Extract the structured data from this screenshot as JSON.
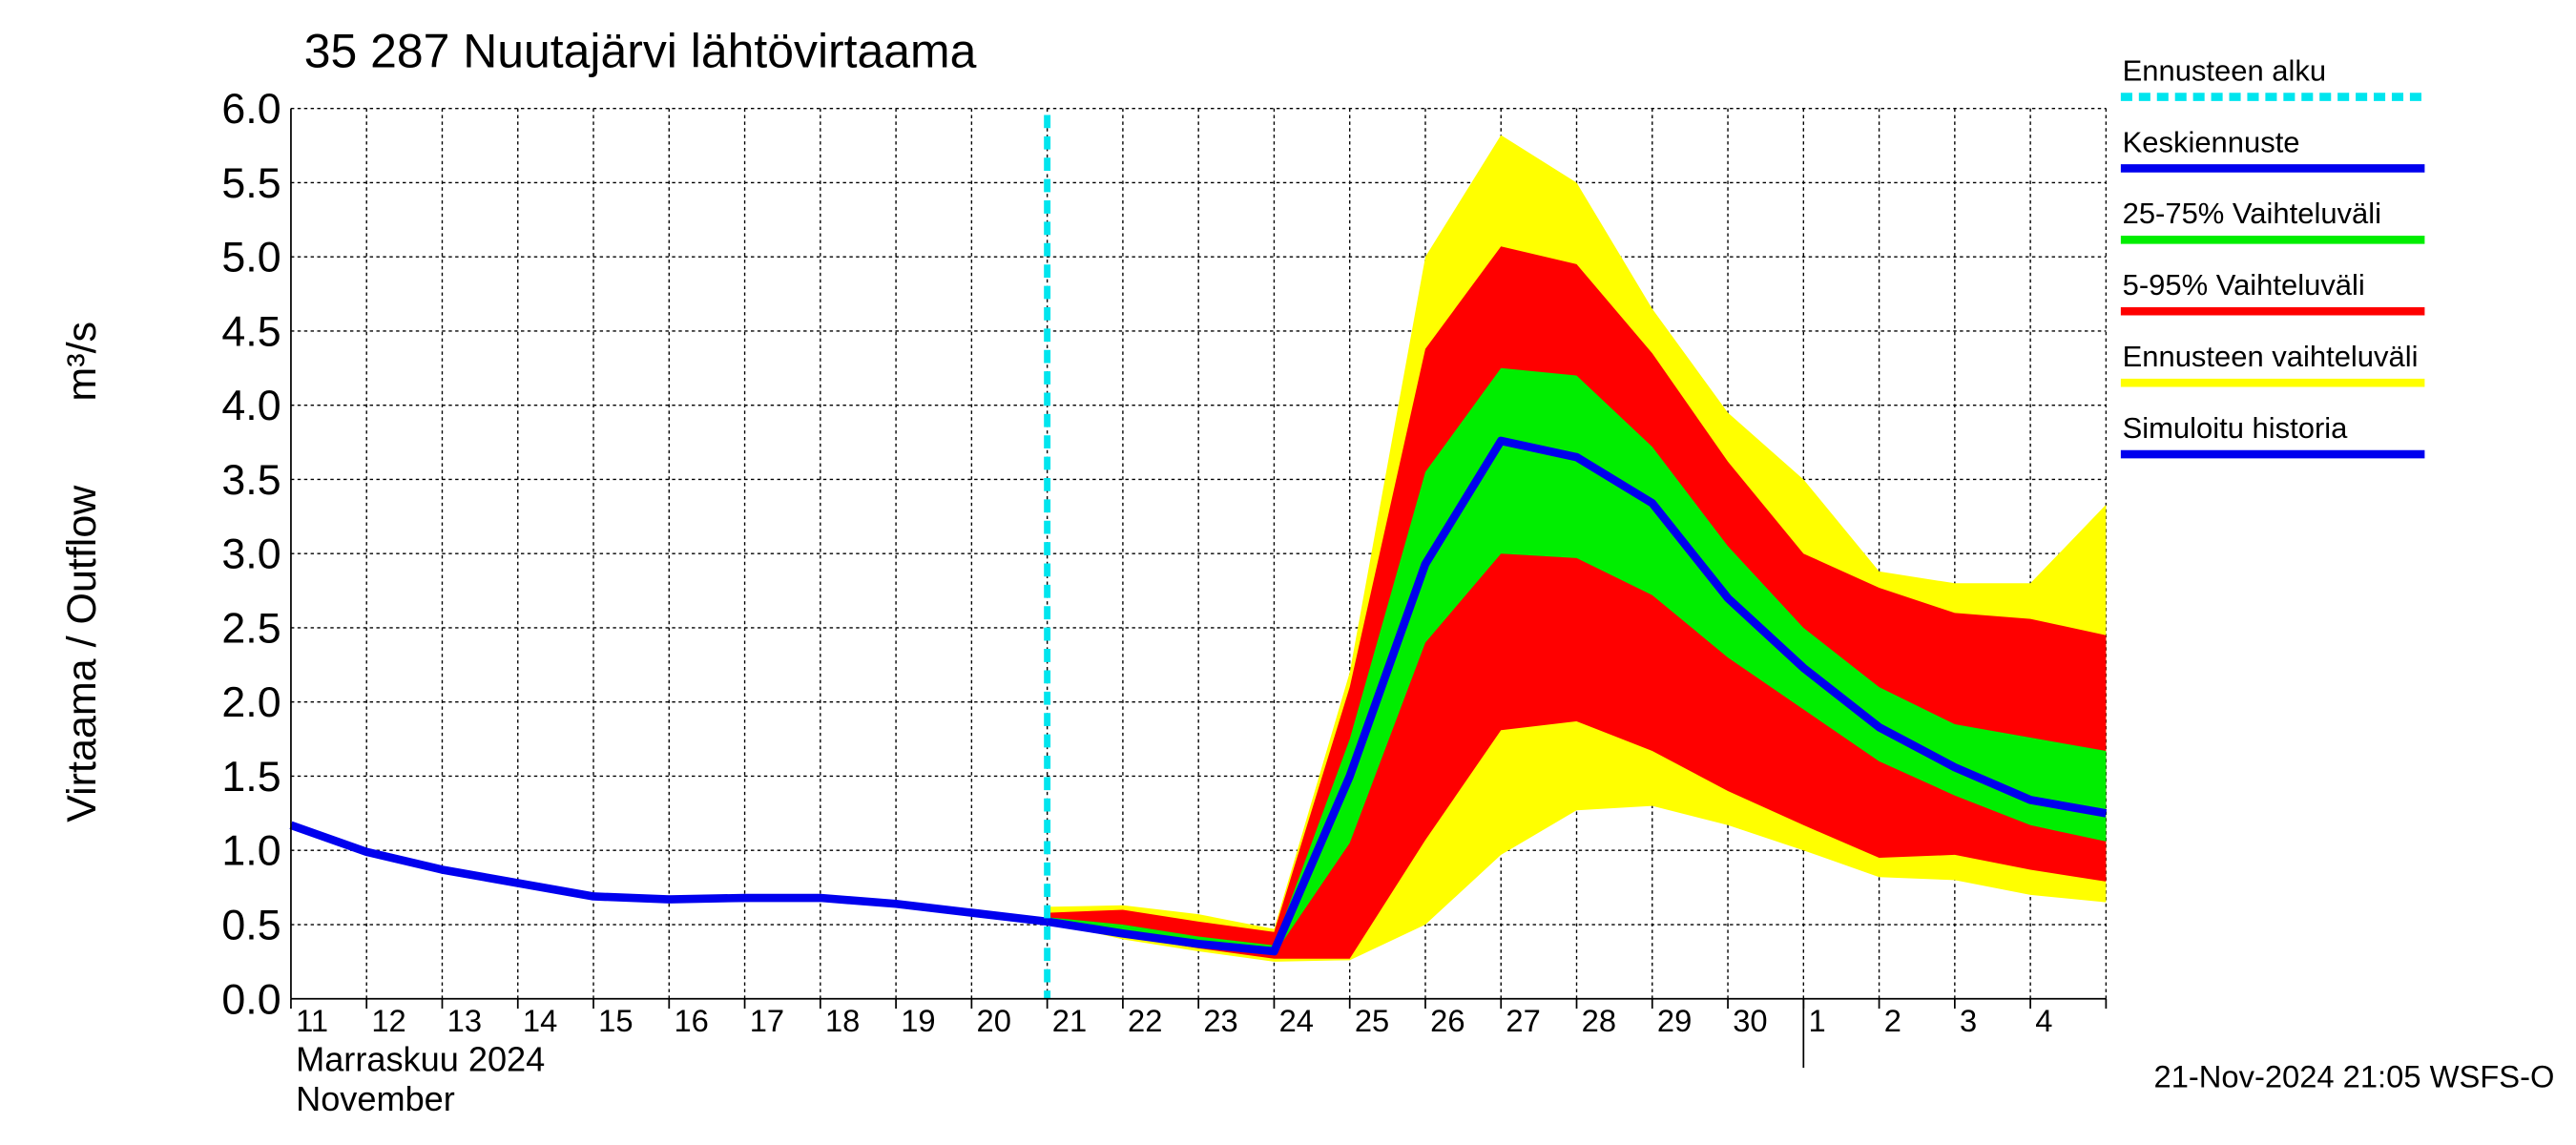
{
  "chart_data": {
    "type": "forecast-band",
    "title": "35 287 Nuutajärvi lähtövirtaama",
    "y_label": "Virtaama / Outflow",
    "y_unit": "m³/s",
    "x_label_month": "Marraskuu 2024",
    "x_label_month_en": "November",
    "footer": "21-Nov-2024 21:05 WSFS-O",
    "categories": [
      "11",
      "12",
      "13",
      "14",
      "15",
      "16",
      "17",
      "18",
      "19",
      "20",
      "21",
      "22",
      "23",
      "24",
      "25",
      "26",
      "27",
      "28",
      "29",
      "30",
      "1",
      "2",
      "3",
      "4",
      null
    ],
    "month_break": 20,
    "ylim": [
      0,
      6
    ],
    "yticks": [
      {
        "value": 0,
        "label": "0.0"
      },
      0.5,
      {
        "value": 1,
        "label": "1.0"
      },
      1.5,
      {
        "value": 2,
        "label": "2.0"
      },
      2.5,
      {
        "value": 3,
        "label": "3.0"
      },
      3.5,
      {
        "value": 4,
        "label": "4.0"
      },
      4.5,
      {
        "value": 5,
        "label": "5.0"
      },
      5.5,
      {
        "value": 6,
        "label": "6.0"
      }
    ],
    "grid": true,
    "forecast_start": {
      "name": "Ennusteen alku",
      "index": 10,
      "color": "#00e5ee"
    },
    "series": [
      {
        "name": "Ennusteen vaihteluväli",
        "kind": "band",
        "color": "#ffff00",
        "values": [
          null,
          null,
          null,
          null,
          null,
          null,
          null,
          null,
          null,
          null,
          0.62,
          0.63,
          0.57,
          0.47,
          2.2,
          5.0,
          5.82,
          5.5,
          4.65,
          3.95,
          3.5,
          2.88,
          2.8,
          2.8,
          3.33
        ],
        "lower": [
          null,
          null,
          null,
          null,
          null,
          null,
          null,
          null,
          null,
          null,
          0.52,
          0.4,
          0.32,
          0.25,
          0.26,
          0.5,
          0.97,
          1.27,
          1.3,
          1.17,
          1.0,
          0.82,
          0.8,
          0.7,
          0.65
        ]
      },
      {
        "name": "5-95% Vaihteluväli",
        "kind": "band",
        "color": "#ff0000",
        "values": [
          null,
          null,
          null,
          null,
          null,
          null,
          null,
          null,
          null,
          null,
          0.58,
          0.6,
          0.52,
          0.45,
          2.1,
          4.38,
          5.07,
          4.95,
          4.35,
          3.62,
          3.0,
          2.77,
          2.6,
          2.56,
          2.45
        ],
        "lower": [
          null,
          null,
          null,
          null,
          null,
          null,
          null,
          null,
          null,
          null,
          0.52,
          0.42,
          0.34,
          0.27,
          0.27,
          1.07,
          1.81,
          1.87,
          1.67,
          1.4,
          1.17,
          0.95,
          0.97,
          0.87,
          0.79
        ]
      },
      {
        "name": "25-75% Vaihteluväli",
        "kind": "band",
        "color": "#00ee00",
        "values": [
          null,
          null,
          null,
          null,
          null,
          null,
          null,
          null,
          null,
          null,
          0.55,
          0.5,
          0.42,
          0.36,
          1.75,
          3.55,
          4.25,
          4.2,
          3.72,
          3.05,
          2.5,
          2.1,
          1.85,
          1.76,
          1.67
        ],
        "lower": [
          null,
          null,
          null,
          null,
          null,
          null,
          null,
          null,
          null,
          null,
          0.52,
          0.43,
          0.36,
          0.3,
          1.05,
          2.4,
          3.0,
          2.97,
          2.72,
          2.3,
          1.95,
          1.6,
          1.37,
          1.17,
          1.06
        ]
      },
      {
        "name": "Keskiennuste",
        "kind": "line",
        "color": "#0000ee",
        "values": [
          null,
          null,
          null,
          null,
          null,
          null,
          null,
          null,
          null,
          null,
          0.52,
          0.44,
          0.37,
          0.32,
          1.5,
          2.93,
          3.76,
          3.65,
          3.34,
          2.7,
          2.23,
          1.83,
          1.56,
          1.34,
          1.25
        ]
      },
      {
        "name": "Simuloitu historia",
        "kind": "line",
        "color": "#0000ee",
        "values": [
          1.17,
          0.99,
          0.87,
          0.78,
          0.69,
          0.67,
          0.68,
          0.68,
          0.64,
          0.58,
          0.52,
          null,
          null,
          null,
          null,
          null,
          null,
          null,
          null,
          null,
          null,
          null,
          null,
          null,
          null
        ]
      }
    ]
  }
}
